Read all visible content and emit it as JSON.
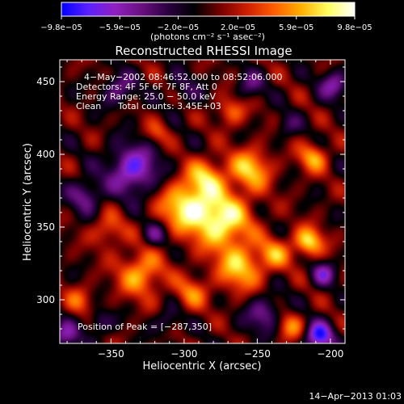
{
  "chart_data": {
    "type": "heatmap",
    "title": "Reconstructed RHESSI Image",
    "xlabel": "Heliocentric X (arcsec)",
    "ylabel": "Heliocentric Y (arcsec)",
    "xlim": [
      -385,
      -190
    ],
    "ylim": [
      270,
      465
    ],
    "xticks": [
      -350,
      -300,
      -250,
      -200
    ],
    "xtick_labels": [
      "−350",
      "−300",
      "−250",
      "−200"
    ],
    "yticks": [
      300,
      350,
      400,
      450
    ],
    "ytick_labels": [
      "300",
      "350",
      "400",
      "450"
    ],
    "colorbar": {
      "ticks": [
        -9.8e-05,
        -5.9e-05,
        -2e-05,
        2e-05,
        5.9e-05,
        9.8e-05
      ],
      "tick_labels": [
        "−9.8e−05",
        "−5.9e−05",
        "−2.0e−05",
        "2.0e−05",
        "5.9e−05",
        "9.8e−05"
      ],
      "label": "(photons cm⁻² s⁻¹ asec⁻²)",
      "colors": [
        "#0000ff",
        "#5a20ff",
        "#9020c0",
        "#6a1080",
        "#2a0040",
        "#000000",
        "#7a0000",
        "#d02000",
        "#ff6000",
        "#ffb000",
        "#ffff60",
        "#ffffff"
      ]
    },
    "annotations": {
      "time_range": "4−May−2002 08:46:52.000 to 08:52:06.000",
      "detectors": "Detectors: 4F 5F 6F 7F 8F, Att 0",
      "energy": "Energy Range: 25.0 − 50.0 keV",
      "clean": "Clean",
      "counts": "Total counts: 3.45E+03",
      "peak": "Position of Peak = [−287,350]"
    },
    "peak": [
      -287,
      350
    ],
    "sources": [
      {
        "x": -275,
        "y": 355,
        "s": 14,
        "a": 1.0
      },
      {
        "x": -300,
        "y": 365,
        "s": 12,
        "a": 0.85
      },
      {
        "x": -255,
        "y": 390,
        "s": 10,
        "a": 0.75
      },
      {
        "x": -285,
        "y": 385,
        "s": 9,
        "a": 0.65
      },
      {
        "x": -262,
        "y": 322,
        "s": 11,
        "a": 0.75
      },
      {
        "x": -238,
        "y": 332,
        "s": 8,
        "a": 0.55
      },
      {
        "x": -215,
        "y": 340,
        "s": 7,
        "a": 0.85
      },
      {
        "x": -212,
        "y": 398,
        "s": 7,
        "a": 0.65
      },
      {
        "x": -330,
        "y": 318,
        "s": 11,
        "a": 0.7
      },
      {
        "x": -352,
        "y": 348,
        "s": 8,
        "a": 0.45
      },
      {
        "x": -372,
        "y": 300,
        "s": 7,
        "a": 0.4
      },
      {
        "x": -295,
        "y": 305,
        "s": 8,
        "a": 0.5
      },
      {
        "x": -228,
        "y": 282,
        "s": 7,
        "a": 0.55
      },
      {
        "x": -268,
        "y": 430,
        "s": 7,
        "a": 0.5
      },
      {
        "x": -318,
        "y": 415,
        "s": 6,
        "a": 0.35
      },
      {
        "x": -335,
        "y": 390,
        "s": 12,
        "a": -0.85
      },
      {
        "x": -368,
        "y": 372,
        "s": 8,
        "a": -0.55
      },
      {
        "x": -345,
        "y": 445,
        "s": 8,
        "a": -0.5
      },
      {
        "x": -208,
        "y": 275,
        "s": 7,
        "a": -0.95
      },
      {
        "x": -245,
        "y": 290,
        "s": 9,
        "a": -0.55
      },
      {
        "x": -205,
        "y": 318,
        "s": 6,
        "a": -0.6
      },
      {
        "x": -198,
        "y": 448,
        "s": 7,
        "a": -0.6
      },
      {
        "x": -382,
        "y": 275,
        "s": 7,
        "a": -0.6
      },
      {
        "x": -320,
        "y": 345,
        "s": 6,
        "a": -0.45
      },
      {
        "x": -300,
        "y": 445,
        "s": 8,
        "a": -0.3
      },
      {
        "x": -255,
        "y": 448,
        "s": 7,
        "a": -0.4
      },
      {
        "x": -230,
        "y": 420,
        "s": 6,
        "a": -0.3
      },
      {
        "x": -358,
        "y": 285,
        "s": 6,
        "a": -0.4
      },
      {
        "x": -312,
        "y": 285,
        "s": 6,
        "a": -0.35
      }
    ]
  },
  "footer": {
    "timestamp": "14−Apr−2013 01:03"
  }
}
